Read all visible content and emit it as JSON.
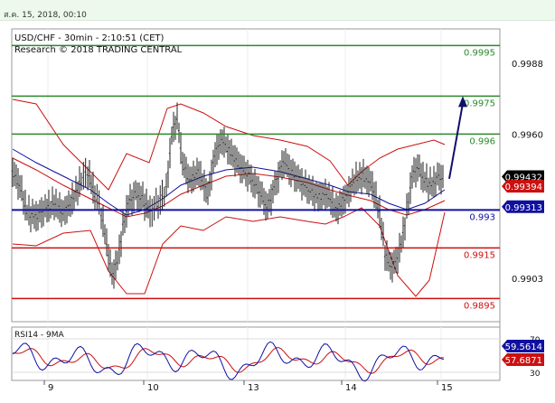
{
  "header": {
    "timestamp": "ส.ค. 15, 2018, 00:10"
  },
  "chart_data": [
    {
      "type": "line",
      "title": "USD/CHF - 30min - 2:10:51 (CET)",
      "subtitle": "Research © 2018 TRADING CENTRAL",
      "price_ticks": [
        "0.9988",
        "0.9960",
        "0.9903"
      ],
      "levels": [
        {
          "value": 0.9995,
          "label": "0.9995",
          "color": "#2a8a2a"
        },
        {
          "value": 0.9975,
          "label": "0.9975",
          "color": "#2a8a2a"
        },
        {
          "value": 0.996,
          "label": "0.996",
          "color": "#2a8a2a"
        },
        {
          "value": 0.993,
          "label": "0.993",
          "color": "#1010a0"
        },
        {
          "value": 0.9915,
          "label": "0.9915",
          "color": "#cc1010"
        },
        {
          "value": 0.9895,
          "label": "0.9895",
          "color": "#cc1010"
        }
      ],
      "badges": [
        {
          "label": "0.99432",
          "value": 0.99432,
          "bg": "#000000",
          "fg": "#ffffff"
        },
        {
          "label": "0.99394",
          "value": 0.99394,
          "bg": "#cc1010",
          "fg": "#ffffff"
        },
        {
          "label": "0.99313",
          "value": 0.99313,
          "bg": "#1010a0",
          "fg": "#ffffff"
        }
      ],
      "x_ticks": [
        "9",
        "10",
        "13",
        "14",
        "15"
      ],
      "forecast": {
        "from": 0.9942,
        "to": 0.9975,
        "color": "#10106b"
      }
    },
    {
      "type": "line",
      "title": "RSI14 - 9MA",
      "y_ticks": [
        "70",
        "30"
      ],
      "badges": [
        {
          "label": "59.5614",
          "value": 59.56,
          "bg": "#1010a0",
          "fg": "#ffffff"
        },
        {
          "label": "57.6871",
          "value": 57.69,
          "bg": "#cc1010",
          "fg": "#ffffff"
        }
      ]
    }
  ]
}
